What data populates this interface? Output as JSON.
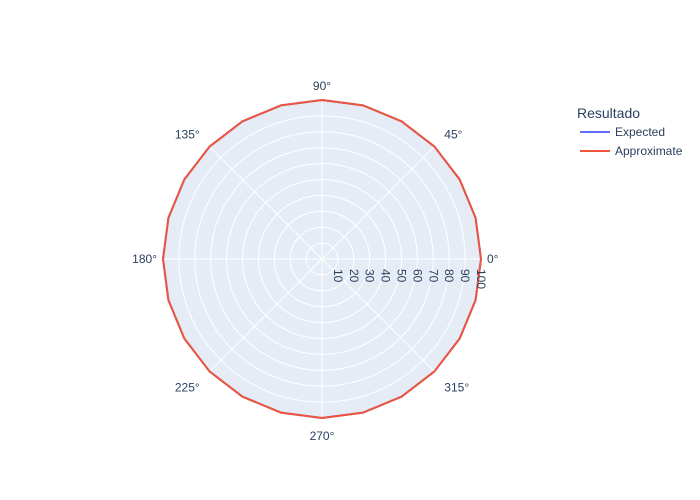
{
  "chart_data": {
    "type": "polar-line",
    "legend": {
      "title": "Resultado",
      "placement": "right"
    },
    "angular_axis": {
      "ticks": [
        0,
        45,
        90,
        135,
        180,
        225,
        270,
        315
      ],
      "tick_labels": [
        "0°",
        "45°",
        "90°",
        "135°",
        "180°",
        "225°",
        "270°",
        "315°"
      ]
    },
    "radial_axis": {
      "range": [
        0,
        100
      ],
      "ticks": [
        10,
        20,
        30,
        40,
        50,
        60,
        70,
        80,
        90,
        100
      ],
      "tick_labels": [
        "10",
        "20",
        "30",
        "40",
        "50",
        "60",
        "70",
        "80",
        "90",
        "100"
      ],
      "angle": 0
    },
    "grid": true,
    "series": [
      {
        "name": "Expected",
        "color": "#636efa",
        "theta": [
          0,
          15,
          30,
          45,
          60,
          75,
          90,
          105,
          120,
          135,
          150,
          165,
          180,
          195,
          210,
          225,
          240,
          255,
          270,
          285,
          300,
          315,
          330,
          345,
          360
        ],
        "r": [
          100,
          100,
          100,
          100,
          100,
          100,
          100,
          100,
          100,
          100,
          100,
          100,
          100,
          100,
          100,
          100,
          100,
          100,
          100,
          100,
          100,
          100,
          100,
          100,
          100
        ]
      },
      {
        "name": "Approximate",
        "color": "#ef553b",
        "theta": [
          0,
          15,
          30,
          45,
          60,
          75,
          90,
          105,
          120,
          135,
          150,
          165,
          180,
          195,
          210,
          225,
          240,
          255,
          270,
          285,
          300,
          315,
          330,
          345,
          360
        ],
        "r": [
          100,
          100,
          100,
          100,
          100,
          100,
          100,
          100,
          100,
          100,
          100,
          100,
          100,
          100,
          100,
          100,
          100,
          100,
          100,
          100,
          100,
          100,
          100,
          100,
          100
        ]
      }
    ]
  }
}
